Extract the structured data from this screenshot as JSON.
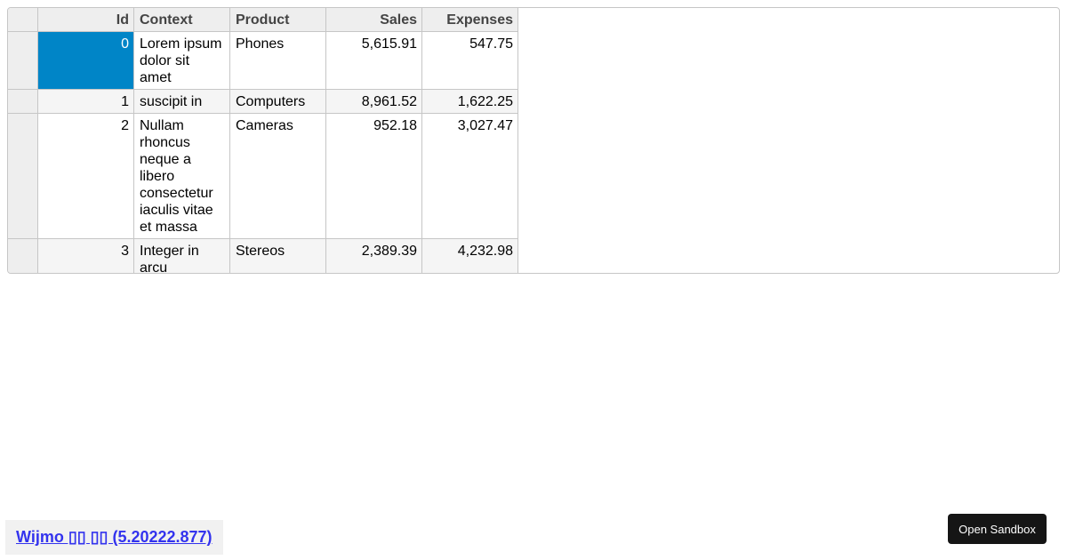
{
  "grid": {
    "columns": [
      "Id",
      "Context",
      "Product",
      "Sales",
      "Expenses"
    ],
    "rows": [
      {
        "id": "0",
        "context": "Lorem ipsum dolor sit amet",
        "product": "Phones",
        "sales": "5,615.91",
        "expenses": "547.75"
      },
      {
        "id": "1",
        "context": "suscipit in",
        "product": "Computers",
        "sales": "8,961.52",
        "expenses": "1,622.25"
      },
      {
        "id": "2",
        "context": "Nullam rhoncus neque a libero consectetur iaculis vitae et massa",
        "product": "Cameras",
        "sales": "952.18",
        "expenses": "3,027.47"
      },
      {
        "id": "3",
        "context": "Integer in arcu pellentesque",
        "product": "Stereos",
        "sales": "2,389.39",
        "expenses": "4,232.98"
      }
    ],
    "selection_color": "#0085c7"
  },
  "footer": {
    "link": "Wijmo ▯▯ ▯▯ (5.20222.877)"
  },
  "sandbox_button": "Open Sandbox"
}
